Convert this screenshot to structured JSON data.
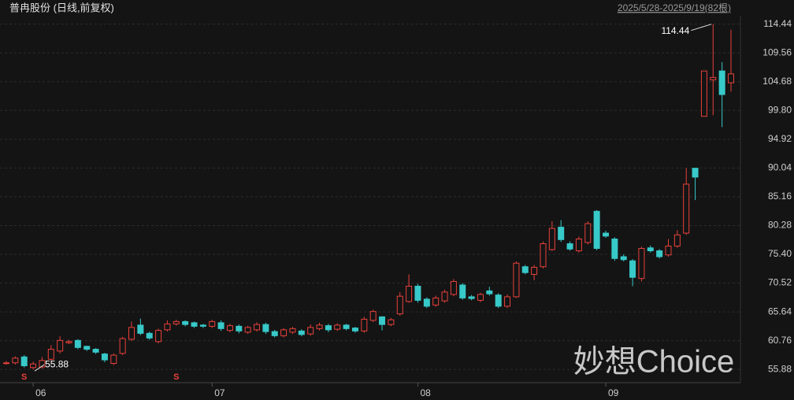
{
  "chart_data": {
    "type": "candlestick",
    "title": "普冉股份 (日线,前复权)",
    "subtitle": "2025/5/28-2025/9/19(82根)",
    "watermark": "妙想Choice",
    "max_label": "114.44",
    "min_label": "55.88",
    "categories": [
      null,
      null,
      null,
      "06",
      null,
      null,
      null,
      null,
      null,
      null,
      null,
      null,
      null,
      null,
      null,
      null,
      null,
      null,
      null,
      null,
      null,
      null,
      null,
      "07",
      null,
      null,
      null,
      null,
      null,
      null,
      null,
      null,
      null,
      null,
      null,
      null,
      null,
      null,
      null,
      null,
      null,
      null,
      null,
      null,
      null,
      null,
      "08",
      null,
      null,
      null,
      null,
      null,
      null,
      null,
      null,
      null,
      null,
      null,
      null,
      null,
      null,
      null,
      null,
      null,
      null,
      null,
      null,
      "09",
      null,
      null,
      null,
      null,
      null,
      null,
      null,
      null,
      null,
      null,
      null,
      null,
      null,
      null
    ],
    "signals": [
      null,
      null,
      "S",
      null,
      null,
      null,
      null,
      null,
      null,
      null,
      null,
      null,
      null,
      null,
      null,
      null,
      null,
      null,
      null,
      "S",
      null,
      null,
      null,
      null,
      null,
      null,
      null,
      null,
      null,
      null,
      null,
      null,
      null,
      null,
      null,
      null,
      null,
      null,
      null,
      null,
      null,
      null,
      null,
      null,
      null,
      null,
      null,
      null,
      null,
      null,
      null,
      null,
      null,
      null,
      null,
      null,
      null,
      null,
      null,
      null,
      null,
      null,
      null,
      null,
      null,
      null,
      null,
      null,
      null,
      null,
      null,
      null,
      null,
      null,
      null,
      null,
      null,
      null,
      null,
      null,
      null,
      null
    ],
    "open": [
      57,
      57,
      58,
      56.2,
      56.3,
      57.6,
      59,
      60.4,
      60.8,
      59.8,
      59.3,
      58.5,
      56.9,
      58.6,
      61,
      63.4,
      62,
      60.6,
      62.6,
      63.6,
      64,
      63.8,
      63.4,
      63.2,
      63.8,
      62.5,
      63.2,
      62.2,
      62.6,
      63.5,
      62.3,
      61.6,
      62.2,
      62.4,
      61.9,
      62.8,
      63.3,
      62.7,
      63.4,
      62.9,
      62.4,
      64.2,
      64.8,
      63.5,
      65.3,
      67.4,
      70,
      67.8,
      66.8,
      67.5,
      68.6,
      70.2,
      68.2,
      67.6,
      69.2,
      68.5,
      66.6,
      68.2,
      73.3,
      72,
      73.3,
      76.2,
      80,
      77.2,
      76,
      77.4,
      82.7,
      79,
      78,
      75,
      74.3,
      71.3,
      76.5,
      76,
      75.3,
      76.8,
      79,
      90,
      98.8,
      105,
      106.5,
      104.5
    ],
    "high": [
      57.3,
      58.1,
      58.3,
      57.2,
      58,
      60,
      61.5,
      60.9,
      61,
      59.9,
      59.5,
      58.7,
      58.6,
      61.4,
      64,
      64.5,
      62.3,
      62.8,
      64.2,
      64.3,
      64.2,
      64,
      63.6,
      64.3,
      64.2,
      63.6,
      63.5,
      63.3,
      63.9,
      63.8,
      62.6,
      62.9,
      63.1,
      62.7,
      63.5,
      63.8,
      63.6,
      63.7,
      63.6,
      63.1,
      64.8,
      66,
      64.9,
      64.6,
      69,
      72,
      70.4,
      68.1,
      68.4,
      69.4,
      71.2,
      70.5,
      68.5,
      68.9,
      69.9,
      68.8,
      68.6,
      74.2,
      73.6,
      73.6,
      77.6,
      81,
      81.2,
      77.6,
      78.4,
      81,
      82.9,
      79.4,
      78.3,
      75.4,
      74.6,
      76.7,
      76.9,
      76.3,
      78,
      79.5,
      90,
      90,
      106.5,
      114.44,
      108,
      113.5
    ],
    "low": [
      56.7,
      56.7,
      56.2,
      55.88,
      56,
      57.3,
      58.6,
      60.2,
      59.3,
      59,
      58.5,
      57.1,
      56.6,
      58.3,
      60.7,
      61.7,
      60.9,
      60.3,
      62.3,
      63.3,
      63.2,
      62.9,
      62.9,
      62.9,
      62.4,
      62.2,
      62,
      61.9,
      62.3,
      61.9,
      61.3,
      61.3,
      61.9,
      61.5,
      61.6,
      62.5,
      62.2,
      62.4,
      62.5,
      62.1,
      62.1,
      63.9,
      62.5,
      63.2,
      65,
      67.2,
      67.2,
      66.3,
      66.5,
      67.2,
      68.3,
      67.7,
      67.6,
      67.3,
      68.4,
      66.3,
      66.3,
      68,
      72,
      71,
      73,
      76,
      77.5,
      76,
      75.7,
      77.1,
      76.1,
      78.2,
      74.3,
      74.2,
      70,
      70.8,
      75.7,
      74.7,
      75,
      76.5,
      78.7,
      84.6,
      98.8,
      99,
      97,
      103
    ],
    "close": [
      57,
      57.8,
      56.5,
      56.8,
      57.4,
      59.3,
      60.8,
      60.6,
      59.6,
      59.3,
      58.8,
      57.5,
      58.3,
      61.1,
      63,
      62,
      61.2,
      62.5,
      63.6,
      64,
      63.5,
      63.2,
      63.2,
      64,
      62.8,
      63.3,
      62.4,
      63,
      63.5,
      62.3,
      61.6,
      62.6,
      62.8,
      61.8,
      63,
      63.4,
      62.6,
      63.4,
      62.8,
      62.4,
      64.4,
      65.7,
      63.5,
      64.3,
      68.3,
      70,
      67.6,
      66.6,
      68,
      69,
      70.8,
      68,
      67.9,
      68.6,
      68.7,
      66.6,
      68.2,
      73.9,
      72.3,
      73.2,
      77.2,
      79.8,
      77.9,
      76.3,
      78,
      80.6,
      76.4,
      78.5,
      74.7,
      74.5,
      71.5,
      76.4,
      76,
      75,
      76.8,
      78.7,
      87.3,
      88.5,
      106.5,
      105.4,
      102.5,
      106
    ],
    "up_color": "#e8413c",
    "down_color": "#38c9c9",
    "ylim": [
      53.9,
      117.2
    ],
    "yticks": [
      55.88,
      60.76,
      65.64,
      70.52,
      {
        "value": 75.4,
        "label": "75.40"
      },
      80.28,
      85.16,
      90.04,
      94.92,
      {
        "value": 99.8,
        "label": "99.80"
      },
      104.68,
      109.56,
      114.44
    ],
    "grid": true
  }
}
